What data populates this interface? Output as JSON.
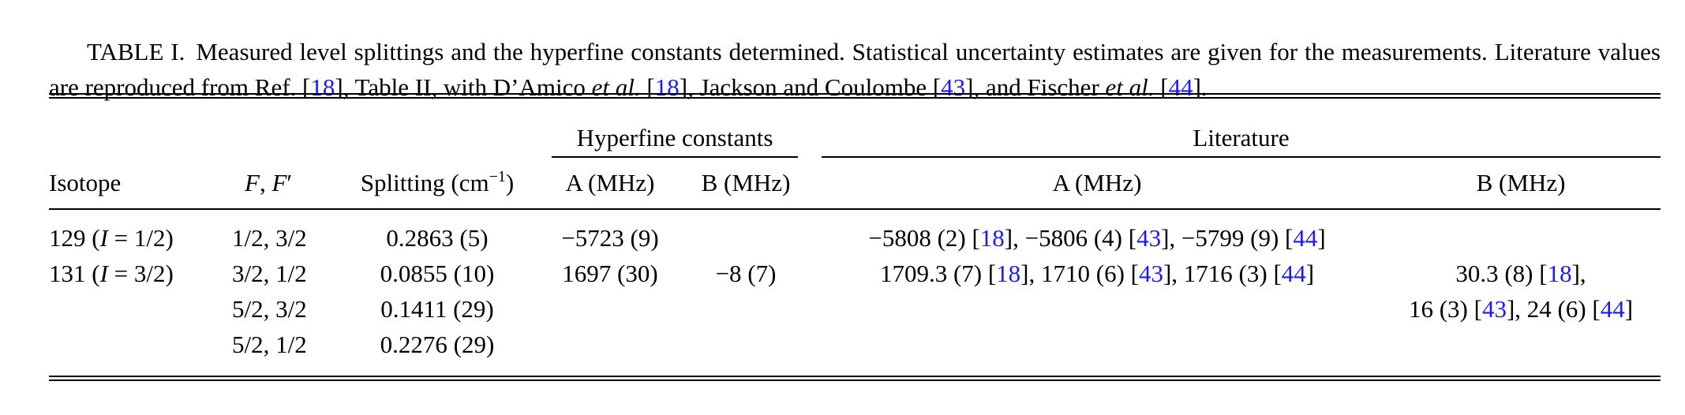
{
  "caption": {
    "label": "TABLE I.",
    "text": [
      "Measured level splittings and the hyperfine constants determined. Statistical uncertainty estimates are given for the measurements. Literature values are reproduced from Ref. [",
      {
        "cite": "18"
      },
      "], Table II, with D’Amico ",
      {
        "em": "et al."
      },
      " [",
      {
        "cite": "18"
      },
      "], Jackson and Coulombe [",
      {
        "cite": "43"
      },
      "], and Fischer ",
      {
        "em": "et al."
      },
      " [",
      {
        "cite": "44"
      },
      "]."
    ]
  },
  "table": {
    "groups": [
      "Hyperfine constants",
      "Literature"
    ],
    "columns": [
      [
        "Isotope"
      ],
      [
        {
          "em": "F"
        },
        ", ",
        {
          "em": "F"
        },
        "′"
      ],
      [
        "Splitting (cm",
        {
          "sup": "−1"
        },
        ")"
      ],
      [
        "A (MHz)"
      ],
      [
        "B (MHz)"
      ],
      [
        "A (MHz)"
      ],
      [
        "B (MHz)"
      ]
    ],
    "rows": [
      [
        [
          "129 (",
          {
            "em": "I"
          },
          " = 1/2)"
        ],
        [
          "1/2, 3/2"
        ],
        [
          "0.2863 (5)"
        ],
        [
          "−5723 (9)"
        ],
        [],
        [
          "−5808 (2) [",
          {
            "cite": "18"
          },
          "], −5806 (4) [",
          {
            "cite": "43"
          },
          "], −5799 (9) [",
          {
            "cite": "44"
          },
          "]"
        ],
        []
      ],
      [
        [
          "131 (",
          {
            "em": "I"
          },
          " = 3/2)"
        ],
        [
          "3/2, 1/2"
        ],
        [
          "0.0855 (10)"
        ],
        [
          "1697 (30)"
        ],
        [
          "−8 (7)"
        ],
        [
          "1709.3 (7) [",
          {
            "cite": "18"
          },
          "], 1710 (6) [",
          {
            "cite": "43"
          },
          "], 1716 (3) [",
          {
            "cite": "44"
          },
          "]"
        ],
        [
          "30.3 (8) [",
          {
            "cite": "18"
          },
          "],"
        ]
      ],
      [
        [],
        [
          "5/2, 3/2"
        ],
        [
          "0.1411 (29)"
        ],
        [],
        [],
        [],
        [
          "16 (3) [",
          {
            "cite": "43"
          },
          "], 24 (6) [",
          {
            "cite": "44"
          },
          "]"
        ]
      ],
      [
        [],
        [
          "5/2, 1/2"
        ],
        [
          "0.2276 (29)"
        ],
        [],
        [],
        [],
        []
      ]
    ]
  }
}
